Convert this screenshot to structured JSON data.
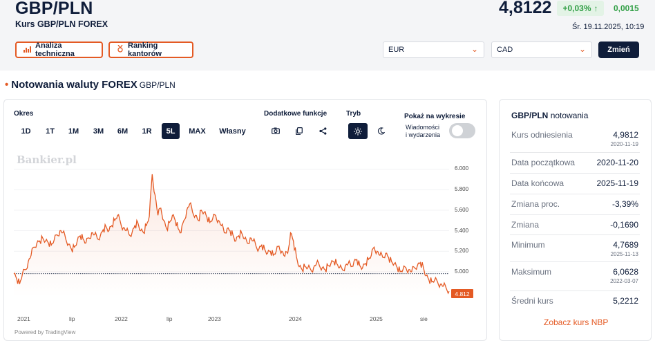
{
  "header": {
    "pair": "GBP/PLN",
    "subtitle": "Kurs GBP/PLN FOREX",
    "price": "4,8122",
    "change_pct": "+0,03%",
    "change_arrow": "↑",
    "change_abs": "0,0015",
    "timestamp": "Śr. 19.11.2025, 10:19",
    "tech_btn": "Analiza techniczna",
    "ranking_btn": "Ranking kantorów",
    "select_from": "EUR",
    "select_to": "CAD",
    "change_btn": "Zmień"
  },
  "section": {
    "title": "Notowania waluty FOREX",
    "pair": "GBP/PLN"
  },
  "controls": {
    "okres_label": "Okres",
    "periods": [
      "1D",
      "1T",
      "1M",
      "3M",
      "6M",
      "1R",
      "5L",
      "MAX",
      "Własny"
    ],
    "active_period": "5L",
    "extra_label": "Dodatkowe funkcje",
    "mode_label": "Tryb",
    "show_label": "Pokaż na wykresie",
    "toggle_label_1": "Wiadomości",
    "toggle_label_2": "i wydarzenia"
  },
  "chart_data": {
    "type": "line",
    "watermark": "Bankier.pl",
    "y_ticks": [
      "6.000",
      "5.800",
      "5.600",
      "5.400",
      "5.200",
      "5.000"
    ],
    "x_ticks": [
      "2021",
      "lip",
      "2022",
      "lip",
      "2023",
      "2024",
      "2025",
      "sie"
    ],
    "ylim": [
      4.75,
      6.03
    ],
    "reference_value": 4.9812,
    "last_value_label": "4.812",
    "color": "#e45a24",
    "series": [
      {
        "values": [
          4.98,
          4.93,
          4.88,
          4.98,
          5.02,
          5.1,
          5.16,
          5.24,
          5.28,
          5.3,
          5.33,
          5.3,
          5.28,
          5.26,
          5.31,
          5.36,
          5.4,
          5.38,
          5.32,
          5.27,
          5.22,
          5.24,
          5.3,
          5.35,
          5.32,
          5.28,
          5.33,
          5.38,
          5.36,
          5.32,
          5.35,
          5.41,
          5.44,
          5.4,
          5.45,
          5.5,
          5.55,
          5.48,
          5.43,
          5.4,
          5.36,
          5.38,
          5.45,
          5.48,
          5.4,
          5.38,
          5.45,
          5.54,
          5.95,
          5.75,
          5.55,
          5.62,
          5.5,
          5.42,
          5.48,
          5.55,
          5.5,
          5.42,
          5.38,
          5.5,
          5.6,
          5.66,
          5.58,
          5.55,
          5.5,
          5.6,
          5.58,
          5.53,
          5.48,
          5.52,
          5.55,
          5.5,
          5.45,
          5.38,
          5.42,
          5.4,
          5.36,
          5.3,
          5.35,
          5.38,
          5.32,
          5.28,
          5.33,
          5.3,
          5.25,
          5.22,
          5.26,
          5.22,
          5.18,
          5.2,
          5.16,
          5.2,
          5.25,
          5.2,
          5.15,
          5.18,
          5.38,
          5.3,
          5.15,
          5.05,
          5.02,
          5.05,
          5.04,
          5.02,
          5.04,
          5.08,
          5.06,
          5.04,
          5.02,
          5.06,
          5.08,
          5.1,
          5.08,
          5.04,
          5.02,
          5.06,
          5.08,
          5.05,
          5.1,
          5.12,
          5.06,
          5.04,
          5.08,
          5.12,
          5.16,
          5.24,
          5.2,
          5.16,
          5.14,
          5.18,
          5.14,
          5.1,
          5.08,
          5.04,
          5.0,
          5.02,
          5.04,
          5.02,
          5.0,
          5.04,
          5.06,
          5.09,
          5.05,
          4.96,
          4.92,
          4.9,
          4.92,
          4.9,
          4.88,
          4.86,
          4.84,
          4.81
        ]
      }
    ]
  },
  "sidebar": {
    "title_pair": "GBP/PLN",
    "title_rest": "notowania",
    "rows": [
      {
        "label": "Kurs odniesienia",
        "value": "4,9812",
        "date": "2020-11-19"
      },
      {
        "label": "Data początkowa",
        "value": "2020-11-20",
        "date": ""
      },
      {
        "label": "Data końcowa",
        "value": "2025-11-19",
        "date": ""
      },
      {
        "label": "Zmiana proc.",
        "value": "-3,39%",
        "date": ""
      },
      {
        "label": "Zmiana",
        "value": "-0,1690",
        "date": ""
      },
      {
        "label": "Minimum",
        "value": "4,7689",
        "date": "2025-11-13"
      },
      {
        "label": "Maksimum",
        "value": "6,0628",
        "date": "2022-03-07"
      },
      {
        "label": "Średni kurs",
        "value": "5,2212",
        "date": ""
      }
    ],
    "nbp_link": "Zobacz kurs NBP"
  },
  "footer": {
    "powered": "Powered by TradingView"
  }
}
